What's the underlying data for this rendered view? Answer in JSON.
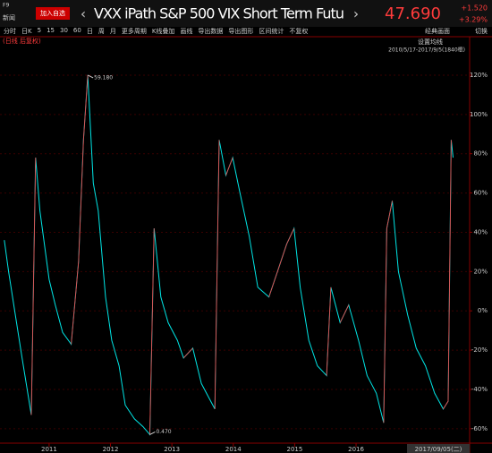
{
  "ui": {
    "f9": "F9",
    "news": "新闻",
    "add_fav": "加入自选",
    "title": "VXX iPath S&P 500 VIX Short Term Futu",
    "price": "47.690",
    "change": "+1.520",
    "change_pct": "+3.29%",
    "classic": "经典画面",
    "switch": "切换",
    "toolbar": [
      "分时",
      "日K",
      "5",
      "15",
      "30",
      "60",
      "日",
      "周",
      "月",
      "更多周期",
      "K线叠加",
      "画线",
      "导出数据",
      "导出图形",
      "区间统计",
      "不复权"
    ],
    "mode": "(日线 后复权)",
    "ma_setting": "设置均线",
    "range": "2010/5/17-2017/9/5(1840根)"
  },
  "chart_data": {
    "type": "line",
    "color": "#00e5e5",
    "x": [
      2010.27,
      2010.34,
      2010.46,
      2010.56,
      2010.71,
      2010.78,
      2010.85,
      2011.0,
      2011.1,
      2011.22,
      2011.36,
      2011.48,
      2011.56,
      2011.63,
      2011.72,
      2011.8,
      2011.92,
      2012.02,
      2012.14,
      2012.24,
      2012.39,
      2012.53,
      2012.64,
      2012.71,
      2012.82,
      2012.94,
      2013.09,
      2013.19,
      2013.34,
      2013.48,
      2013.7,
      2013.77,
      2013.88,
      2013.99,
      2014.11,
      2014.26,
      2014.4,
      2014.58,
      2014.72,
      2014.87,
      2014.99,
      2015.09,
      2015.23,
      2015.37,
      2015.52,
      2015.59,
      2015.74,
      2015.88,
      2016.04,
      2016.18,
      2016.33,
      2016.45,
      2016.5,
      2016.59,
      2016.69,
      2016.84,
      2016.98,
      2017.13,
      2017.28,
      2017.42,
      2017.5,
      2017.55,
      2017.58
    ],
    "values": [
      36,
      20,
      -4,
      -24,
      -53,
      78,
      51,
      16,
      3,
      -11,
      -17,
      25,
      87,
      120,
      65,
      51,
      7,
      -15,
      -28,
      -48,
      -55,
      -59,
      -63,
      42,
      7,
      -6,
      -15,
      -24,
      -19,
      -37,
      -50,
      87,
      69,
      78,
      60,
      38,
      12,
      7,
      20,
      34,
      42,
      12,
      -15,
      -28,
      -33,
      12,
      -6,
      3,
      -15,
      -33,
      -42,
      -57,
      42,
      56,
      20,
      -2,
      -19,
      -28,
      -42,
      -50,
      -46,
      87,
      78
    ],
    "xlim": [
      2010.2,
      2017.85
    ],
    "xticks": [
      2011,
      2012,
      2013,
      2014,
      2015,
      2016
    ],
    "ylim": [
      -66,
      130
    ],
    "yticks": [
      {
        "value": 120,
        "label": "120%"
      },
      {
        "value": 100,
        "label": "100%"
      },
      {
        "value": 80,
        "label": "80%"
      },
      {
        "value": 60,
        "label": "60%"
      },
      {
        "value": 40,
        "label": "40%"
      },
      {
        "value": 20,
        "label": "20%"
      },
      {
        "value": 0,
        "label": "0%"
      },
      {
        "value": -20,
        "label": "-20%"
      },
      {
        "value": -40,
        "label": "-40%"
      },
      {
        "value": -60,
        "label": "-60%"
      }
    ],
    "grid": true,
    "annotations": [
      {
        "text": "59.180",
        "x": 2011.63,
        "y": 120
      },
      {
        "text": "0.470",
        "x": 2012.64,
        "y": -63
      }
    ],
    "cursor_date": "2017/09/05(二)"
  }
}
